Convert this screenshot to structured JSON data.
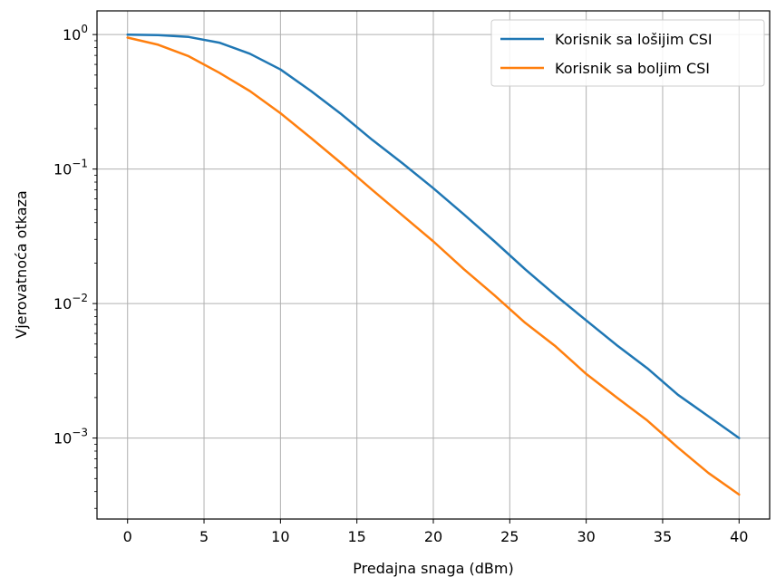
{
  "chart_data": {
    "type": "line",
    "xlabel": "Predajna snaga (dBm)",
    "ylabel": "Vjerovatnoća otkaza",
    "xlim": [
      -2,
      42
    ],
    "ylim": [
      0.00025,
      1.5
    ],
    "yscale": "log",
    "grid": true,
    "legend_position": "top-right",
    "x_ticks": [
      0,
      5,
      10,
      15,
      20,
      25,
      30,
      35,
      40
    ],
    "y_ticks": [
      {
        "value": 1,
        "base": "10",
        "exp": "0"
      },
      {
        "value": 0.1,
        "base": "10",
        "exp": "−1"
      },
      {
        "value": 0.01,
        "base": "10",
        "exp": "−2"
      },
      {
        "value": 0.001,
        "base": "10",
        "exp": "−3"
      }
    ],
    "x": [
      0,
      2,
      4,
      6,
      8,
      10,
      12,
      14,
      16,
      18,
      20,
      22,
      24,
      26,
      28,
      30,
      32,
      34,
      36,
      38,
      40
    ],
    "series": [
      {
        "name": "Korisnik sa lošijim CSI",
        "color": "#1f77b4",
        "values": [
          0.998,
          0.99,
          0.96,
          0.87,
          0.72,
          0.55,
          0.38,
          0.255,
          0.165,
          0.11,
          0.072,
          0.046,
          0.029,
          0.018,
          0.0115,
          0.0075,
          0.0049,
          0.0033,
          0.0021,
          0.00145,
          0.001
        ]
      },
      {
        "name": "Korisnik sa boljim CSI",
        "color": "#ff7f0e",
        "values": [
          0.95,
          0.84,
          0.69,
          0.52,
          0.38,
          0.26,
          0.17,
          0.11,
          0.07,
          0.045,
          0.029,
          0.018,
          0.0115,
          0.0072,
          0.0048,
          0.003,
          0.002,
          0.00135,
          0.00085,
          0.00055,
          0.00038
        ]
      }
    ]
  }
}
